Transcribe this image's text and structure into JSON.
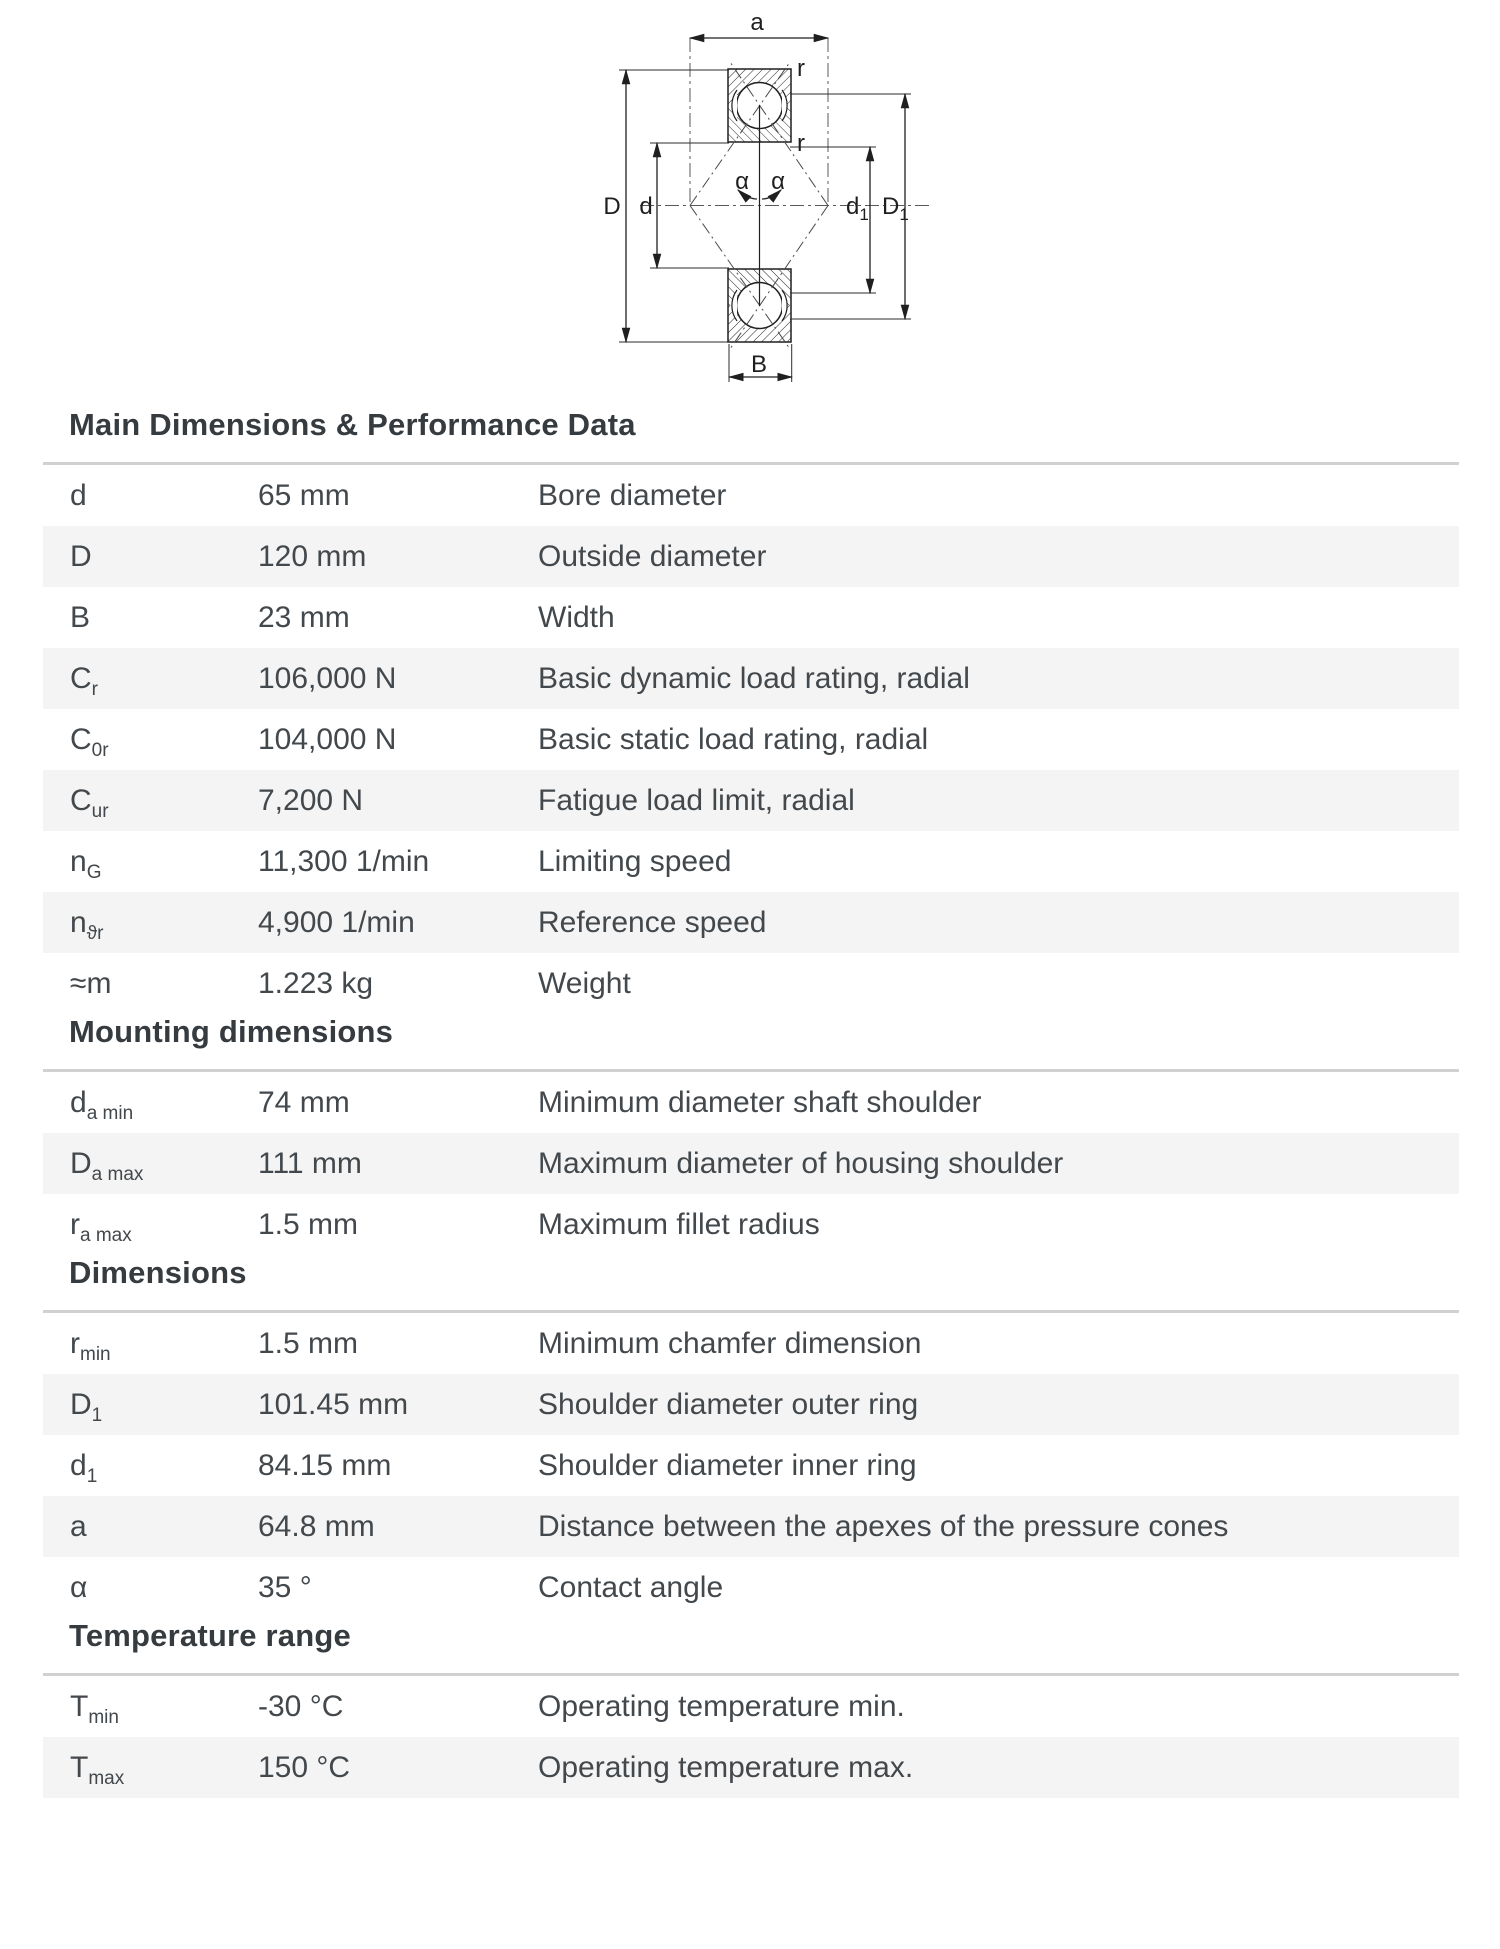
{
  "drawing": {
    "labels": {
      "a": "a",
      "r_top": "r",
      "r_bottom": "r",
      "D": "D",
      "d": "d",
      "alpha_left": "α",
      "alpha_right": "α",
      "d1_base": "d",
      "d1_sub": "1",
      "D1_base": "D",
      "D1_sub": "1",
      "B": "B"
    }
  },
  "colors": {
    "row_alt_bg": "#f4f4f4",
    "table_top_border": "#d1d1d1",
    "text": "#43484c",
    "title": "#363b40"
  },
  "sections": [
    {
      "title": "Main Dimensions & Performance Data",
      "rows": [
        {
          "symbol": {
            "base": "d",
            "sub": ""
          },
          "value": "65 mm",
          "description": "Bore diameter"
        },
        {
          "symbol": {
            "base": "D",
            "sub": ""
          },
          "value": "120 mm",
          "description": "Outside diameter"
        },
        {
          "symbol": {
            "base": "B",
            "sub": ""
          },
          "value": "23 mm",
          "description": "Width"
        },
        {
          "symbol": {
            "base": "C",
            "sub": "r"
          },
          "value": "106,000 N",
          "description": "Basic dynamic load rating, radial"
        },
        {
          "symbol": {
            "base": "C",
            "sub": "0r"
          },
          "value": "104,000 N",
          "description": "Basic static load rating, radial"
        },
        {
          "symbol": {
            "base": "C",
            "sub": "ur"
          },
          "value": "7,200 N",
          "description": "Fatigue load limit, radial"
        },
        {
          "symbol": {
            "base": "n",
            "sub": "G"
          },
          "value": "11,300 1/min",
          "description": "Limiting speed"
        },
        {
          "symbol": {
            "base": "n",
            "sub": "ϑr"
          },
          "value": "4,900 1/min",
          "description": "Reference speed"
        },
        {
          "symbol": {
            "base": "≈m",
            "sub": ""
          },
          "value": "1.223 kg",
          "description": "Weight"
        }
      ]
    },
    {
      "title": "Mounting dimensions",
      "rows": [
        {
          "symbol": {
            "base": "d",
            "sub": "a min"
          },
          "value": "74 mm",
          "description": "Minimum diameter shaft shoulder"
        },
        {
          "symbol": {
            "base": "D",
            "sub": "a max"
          },
          "value": "111 mm",
          "description": "Maximum diameter of housing shoulder"
        },
        {
          "symbol": {
            "base": "r",
            "sub": "a max"
          },
          "value": "1.5 mm",
          "description": "Maximum fillet radius"
        }
      ]
    },
    {
      "title": "Dimensions",
      "rows": [
        {
          "symbol": {
            "base": "r",
            "sub": "min"
          },
          "value": "1.5 mm",
          "description": "Minimum chamfer dimension"
        },
        {
          "symbol": {
            "base": "D",
            "sub": "1"
          },
          "value": "101.45 mm",
          "description": "Shoulder diameter outer ring"
        },
        {
          "symbol": {
            "base": "d",
            "sub": "1"
          },
          "value": "84.15 mm",
          "description": "Shoulder diameter inner ring"
        },
        {
          "symbol": {
            "base": "a",
            "sub": ""
          },
          "value": "64.8 mm",
          "description": "Distance between the apexes of the pressure cones"
        },
        {
          "symbol": {
            "base": "α",
            "sub": ""
          },
          "value": "35 °",
          "description": "Contact angle"
        }
      ]
    },
    {
      "title": "Temperature range",
      "rows": [
        {
          "symbol": {
            "base": "T",
            "sub": "min"
          },
          "value": "-30 °C",
          "description": "Operating temperature min."
        },
        {
          "symbol": {
            "base": "T",
            "sub": "max"
          },
          "value": "150 °C",
          "description": "Operating temperature max."
        }
      ]
    }
  ]
}
